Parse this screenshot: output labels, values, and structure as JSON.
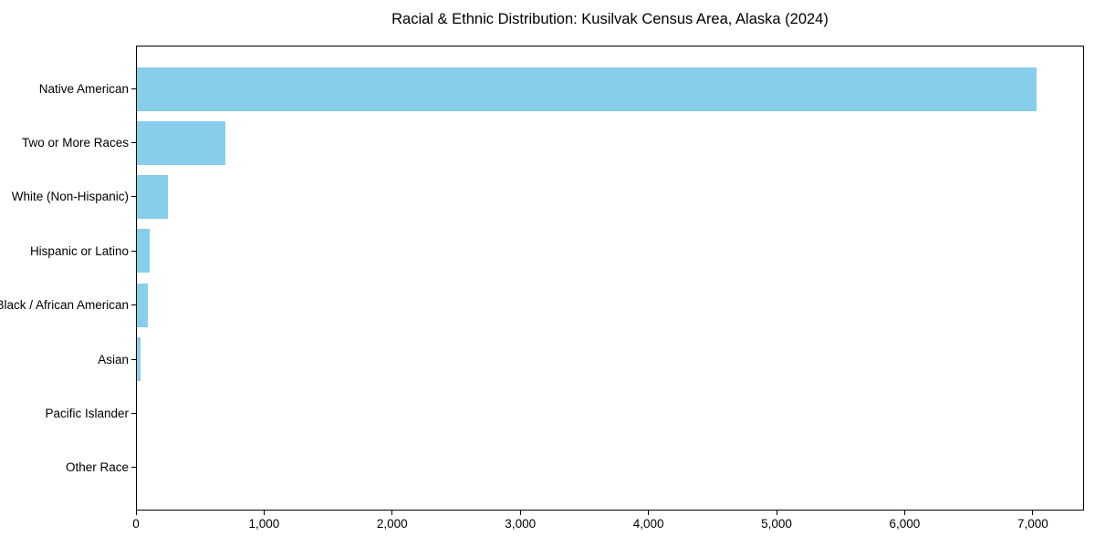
{
  "figure": {
    "background": "#ffffff",
    "text_color": "#000000",
    "spine_color": "#000000"
  },
  "chart_data": {
    "type": "bar",
    "orientation": "horizontal",
    "title": "Racial & Ethnic Distribution: Kusilvak Census Area, Alaska (2024)",
    "categories": [
      "Native American",
      "Two or More Races",
      "White (Non-Hispanic)",
      "Hispanic or Latino",
      "Black / African American",
      "Asian",
      "Pacific Islander",
      "Other Race"
    ],
    "values": [
      7035,
      690,
      240,
      100,
      85,
      25,
      0,
      0
    ],
    "bar_color": "#87CEEB",
    "xlim": [
      0,
      7400
    ],
    "x_ticks": [
      0,
      1000,
      2000,
      3000,
      4000,
      5000,
      6000,
      7000
    ],
    "x_tick_labels": [
      "0",
      "1,000",
      "2,000",
      "3,000",
      "4,000",
      "5,000",
      "6,000",
      "7,000"
    ],
    "xlabel": "",
    "ylabel": "",
    "grid": false
  }
}
